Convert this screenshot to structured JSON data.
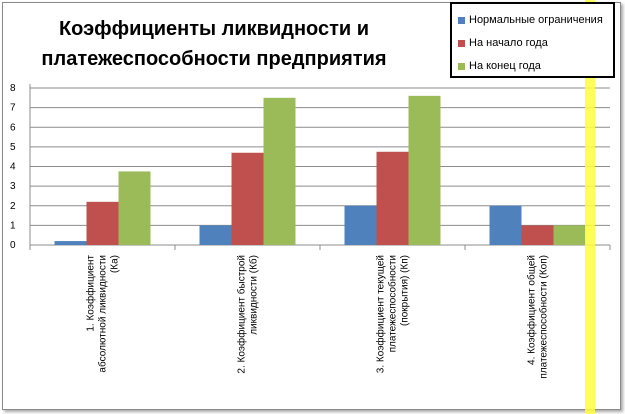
{
  "chart_data": {
    "type": "bar",
    "title_line1": "Коэффициенты ликвидности и",
    "title_line2": "платежеспособности предприятия",
    "categories": [
      [
        "1. Коэффициент",
        "абсолютной ликвидности",
        "(Ка)"
      ],
      [
        "2. Коэффициент быстрой",
        "ликвидности (Кб)"
      ],
      [
        "3. Коэффициент текущей",
        "платежеспособности",
        "(покрытия) (Кп)"
      ],
      [
        "4. Коэффициент общей",
        "платежеспособности (Коп)"
      ]
    ],
    "series": [
      {
        "name": "Нормальные ограничения",
        "color": "#4f81bd",
        "values": [
          0.2,
          1.0,
          2.0,
          2.0
        ]
      },
      {
        "name": "На начало года",
        "color": "#c0504d",
        "values": [
          2.2,
          4.7,
          4.75,
          1.0
        ]
      },
      {
        "name": "На конец года",
        "color": "#9bbb59",
        "values": [
          3.75,
          7.5,
          7.6,
          1.0
        ]
      }
    ],
    "yticks": [
      0,
      1,
      2,
      3,
      4,
      5,
      6,
      7,
      8
    ],
    "ylim": [
      0,
      8
    ],
    "grid": true,
    "legend_position": "top-right"
  }
}
